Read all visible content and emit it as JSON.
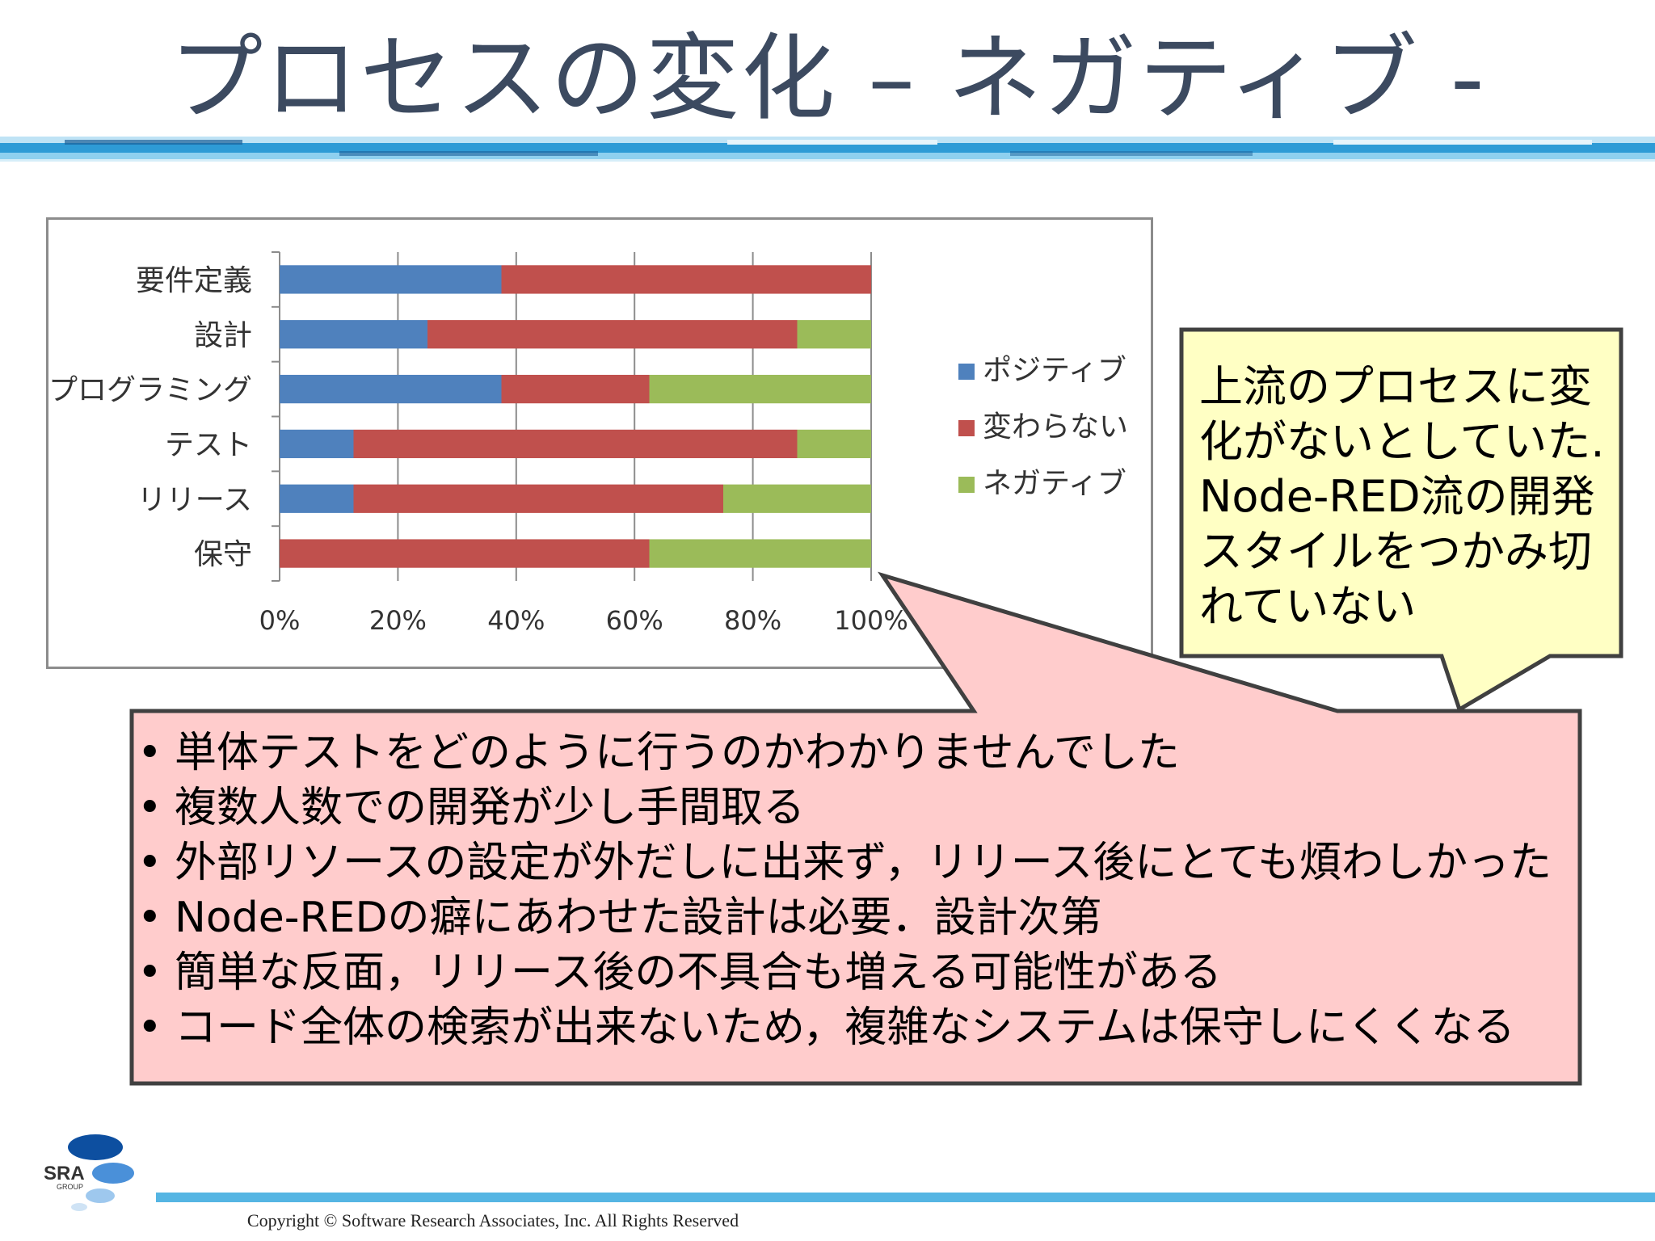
{
  "slide": {
    "title": "プロセスの変化 – ネガティブ -",
    "copyright": "Copyright © Software Research Associates,  Inc. All Rights Reserved"
  },
  "logo": {
    "text": "SRA",
    "sub": "GROUP"
  },
  "chart_data": {
    "type": "bar",
    "orientation": "horizontal",
    "stacked": "100%",
    "categories": [
      "要件定義",
      "設計",
      "プログラミング",
      "テスト",
      "リリース",
      "保守"
    ],
    "series": [
      {
        "name": "ポジティブ",
        "color": "#4f81bd",
        "values": [
          37.5,
          25,
          37.5,
          12.5,
          12.5,
          0
        ]
      },
      {
        "name": "変わらない",
        "color": "#c0504d",
        "values": [
          62.5,
          62.5,
          25,
          75,
          62.5,
          62.5
        ]
      },
      {
        "name": "ネガティブ",
        "color": "#9bbb59",
        "values": [
          0,
          12.5,
          37.5,
          12.5,
          25,
          37.5
        ]
      }
    ],
    "xlim": [
      0,
      100
    ],
    "xticks": [
      "0%",
      "20%",
      "40%",
      "60%",
      "80%",
      "100%"
    ],
    "grid": true,
    "legend": "right"
  },
  "callout_yellow": {
    "lines": [
      "上流のプロセスに変",
      "化がないとしていた.",
      "Node-RED流の開発",
      "スタイルをつかみ切",
      "れていない"
    ]
  },
  "callout_pink": {
    "items": [
      "単体テストをどのように行うのかわかりませんでした",
      "複数人数での開発が少し手間取る",
      "外部リソースの設定が外だしに出来ず，リリース後にとても煩わしかった",
      "Node-REDの癖にあわせた設計は必要．設計次第",
      "簡単な反面，リリース後の不具合も増える可能性がある",
      "コード全体の検索が出来ないため，複雑なシステムは保守しにくくなる"
    ]
  }
}
